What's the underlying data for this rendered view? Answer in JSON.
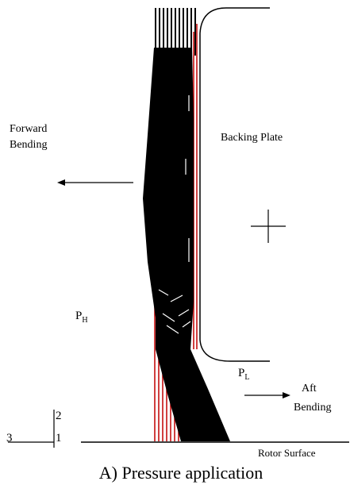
{
  "labels": {
    "forward": [
      "Forward",
      "Bending"
    ],
    "backing_plate": "Backing Plate",
    "p_high": {
      "main": "P",
      "sub": "H"
    },
    "p_low": {
      "main": "P",
      "sub": "L"
    },
    "aft": [
      "Aft",
      "Bending"
    ],
    "rotor": "Rotor Surface"
  },
  "axes": {
    "y": "2",
    "x": "3",
    "z": "1"
  },
  "caption": "A) Pressure application"
}
